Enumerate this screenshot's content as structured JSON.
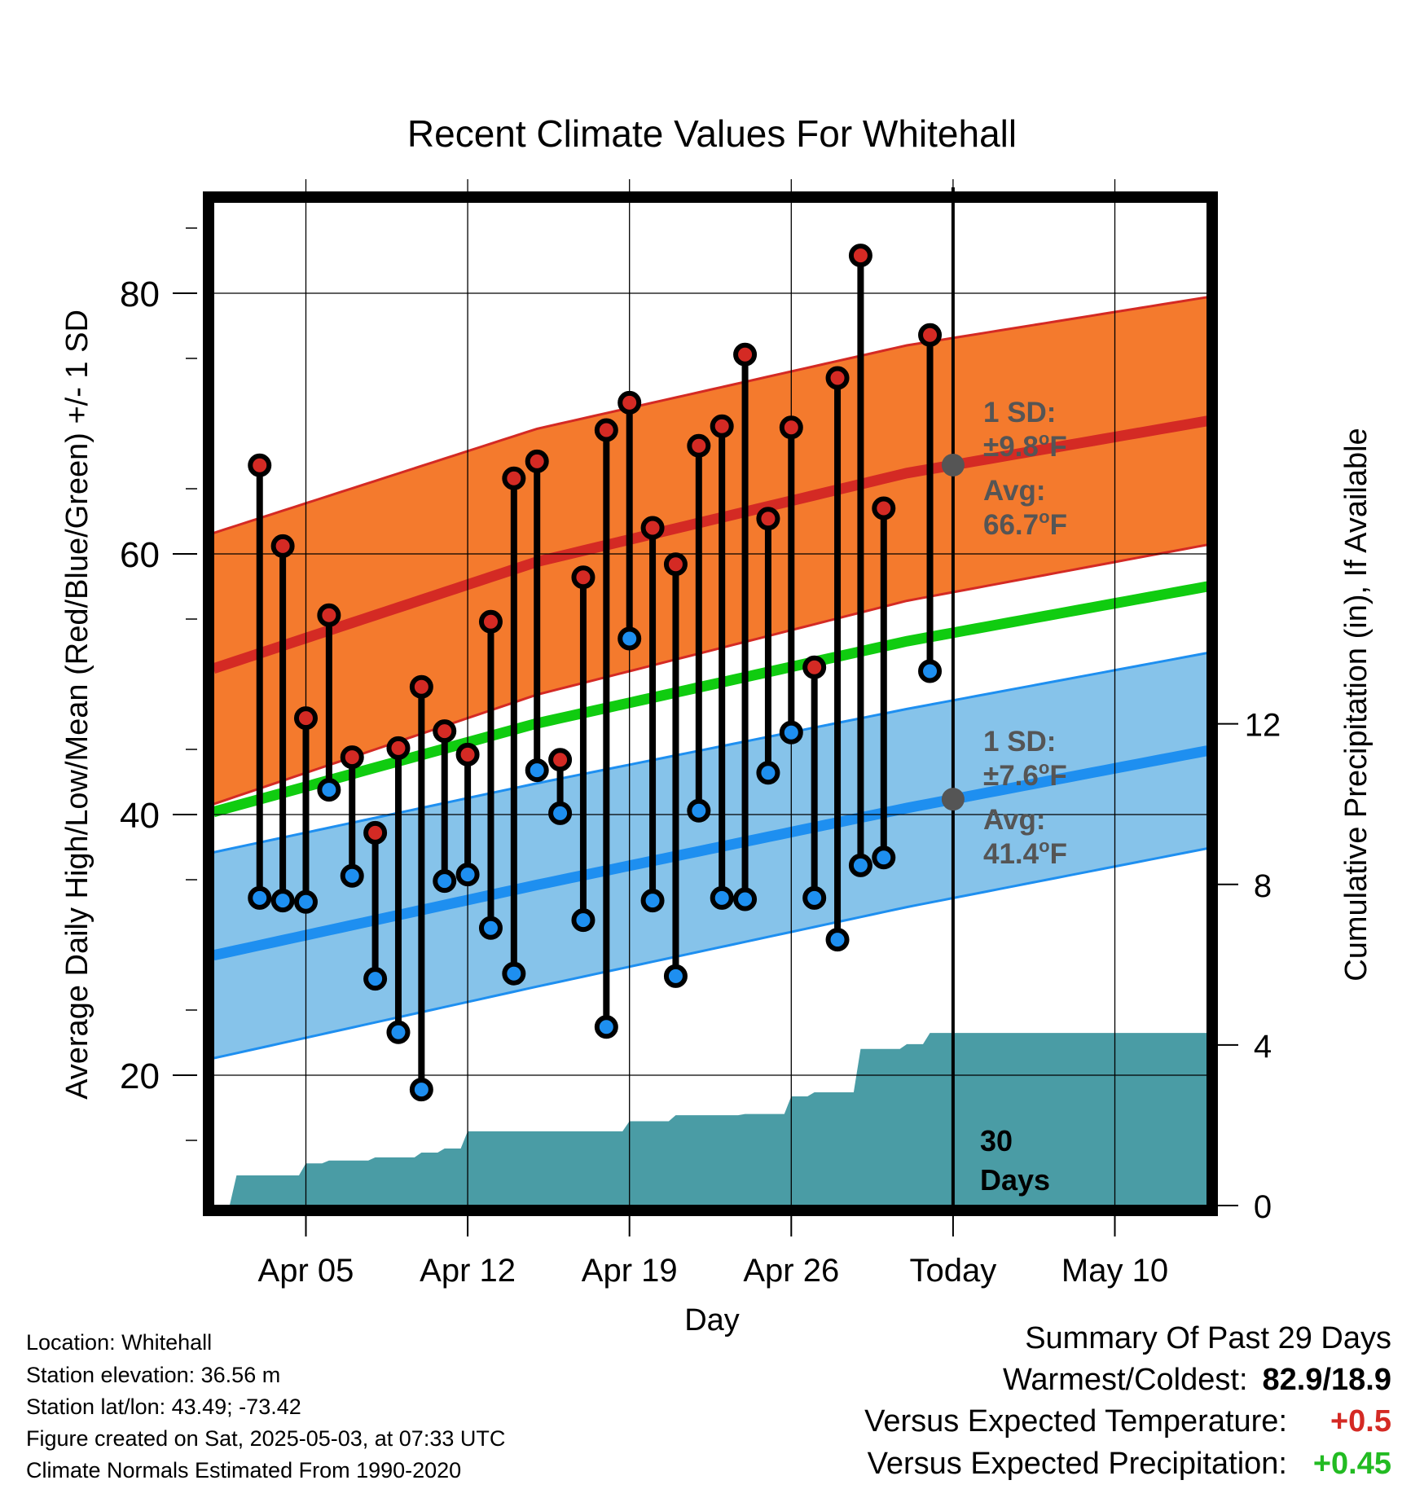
{
  "chart_data": {
    "type": "line",
    "title": "Recent Climate Values For Whitehall",
    "xlabel": "Day",
    "ylabel_left": "Average Daily High/Low/Mean (Red/Blue/Green) +/- 1 SD",
    "ylabel_right": "Cumulative Precipitation (in), If Available",
    "x_ticks": [
      "Apr 05",
      "Apr 12",
      "Apr 19",
      "Apr 26",
      "Today",
      "May 10"
    ],
    "y_left_ticks": [
      20,
      40,
      60,
      80
    ],
    "y_right_ticks": [
      0,
      4,
      8,
      12
    ],
    "y_left_range": [
      10,
      87
    ],
    "y_right_range": [
      0,
      25
    ],
    "x_range_days": [
      "2025-04-01",
      "2025-05-14"
    ],
    "today": "2025-05-03",
    "grid": true,
    "days": [
      "2025-04-03",
      "2025-04-04",
      "2025-04-05",
      "2025-04-06",
      "2025-04-07",
      "2025-04-08",
      "2025-04-09",
      "2025-04-10",
      "2025-04-11",
      "2025-04-12",
      "2025-04-13",
      "2025-04-14",
      "2025-04-15",
      "2025-04-16",
      "2025-04-17",
      "2025-04-18",
      "2025-04-19",
      "2025-04-20",
      "2025-04-21",
      "2025-04-22",
      "2025-04-23",
      "2025-04-24",
      "2025-04-25",
      "2025-04-26",
      "2025-04-27",
      "2025-04-28",
      "2025-04-29",
      "2025-04-30",
      "2025-05-02"
    ],
    "observed_high": [
      66.8,
      60.6,
      47.4,
      55.3,
      44.4,
      38.6,
      45.1,
      49.8,
      46.4,
      44.6,
      54.8,
      65.8,
      67.1,
      44.2,
      58.2,
      69.5,
      71.6,
      62.0,
      59.2,
      68.3,
      69.8,
      75.3,
      62.7,
      69.7,
      51.3,
      73.5,
      82.9,
      63.5,
      76.8
    ],
    "observed_low": [
      33.6,
      33.4,
      33.3,
      41.9,
      35.3,
      27.4,
      23.3,
      18.9,
      34.9,
      35.4,
      31.3,
      27.8,
      43.4,
      40.1,
      31.9,
      23.7,
      53.5,
      33.4,
      27.6,
      40.3,
      33.6,
      33.5,
      43.2,
      46.3,
      33.6,
      30.4,
      36.1,
      36.7,
      51.0
    ],
    "normal_high_series": {
      "name": "Normal High",
      "x": [
        "2025-04-01",
        "2025-04-15",
        "2025-05-01",
        "2025-05-14"
      ],
      "mean": [
        51.2,
        59.4,
        66.2,
        70.2
      ],
      "sd": [
        10.4,
        10.2,
        9.8,
        9.5
      ]
    },
    "normal_low_series": {
      "name": "Normal Low",
      "x": [
        "2025-04-01",
        "2025-04-15",
        "2025-05-01",
        "2025-05-14"
      ],
      "mean": [
        29.2,
        34.6,
        40.5,
        44.9
      ],
      "sd": [
        7.9,
        7.8,
        7.6,
        7.5
      ]
    },
    "normal_mean_series": {
      "name": "Normal Mean",
      "x": [
        "2025-04-01",
        "2025-04-15",
        "2025-05-01",
        "2025-05-14"
      ],
      "values": [
        40.2,
        47.0,
        53.3,
        57.5
      ]
    },
    "precip_cumulative": {
      "x": [
        "2025-04-01",
        "2025-04-02",
        "2025-04-03",
        "2025-04-04",
        "2025-04-05",
        "2025-04-06",
        "2025-04-07",
        "2025-04-08",
        "2025-04-09",
        "2025-04-10",
        "2025-04-11",
        "2025-04-12",
        "2025-04-13",
        "2025-04-18",
        "2025-04-19",
        "2025-04-20",
        "2025-04-21",
        "2025-04-24",
        "2025-04-25",
        "2025-04-26",
        "2025-04-27",
        "2025-04-28",
        "2025-04-29",
        "2025-04-30",
        "2025-05-01",
        "2025-05-02",
        "2025-05-14"
      ],
      "values": [
        0.0,
        0.75,
        0.75,
        0.75,
        1.05,
        1.12,
        1.12,
        1.2,
        1.2,
        1.32,
        1.42,
        1.85,
        1.85,
        1.85,
        2.1,
        2.1,
        2.25,
        2.28,
        2.28,
        2.72,
        2.82,
        2.82,
        3.9,
        3.9,
        4.02,
        4.3,
        4.3
      ]
    }
  },
  "annotations": {
    "high_sd_line1": "1 SD:",
    "high_sd_line2": "±9.8",
    "high_avg_line1": "Avg:",
    "high_avg_line2": "66.7",
    "low_sd_line1": "1 SD:",
    "low_sd_line2": "±7.6",
    "low_avg_line1": "Avg:",
    "low_avg_line2": "41.4",
    "deg_sup": "o",
    "unit_f": "F",
    "days_count": "30",
    "days_label": "Days"
  },
  "colors": {
    "high_band": "#f47a2d",
    "high_line": "#d42a24",
    "low_band": "#86c3ea",
    "low_line": "#1e8ff0",
    "mean_line": "#10cc10",
    "precip": "#4a9ca5",
    "high_dot": "#d42a24",
    "low_dot": "#1e8ff0",
    "annotation": "#555555",
    "positive_temp": "#d42a24",
    "positive_precip": "#22bb22"
  },
  "info": {
    "location": "Location: Whitehall",
    "elevation": "Station elevation: 36.56 m",
    "latlon": "Station lat/lon: 43.49; -73.42",
    "created": "Figure created on Sat, 2025-05-03, at 07:33 UTC",
    "normals": "Climate Normals Estimated From 1990-2020"
  },
  "summary": {
    "title": "Summary Of Past 29 Days",
    "warm_cold_label": "Warmest/Coldest:",
    "warm_cold_value": "82.9/18.9",
    "temp_label": "Versus Expected Temperature:",
    "temp_value": "+0.5",
    "precip_label": "Versus Expected Precipitation:",
    "precip_value": "+0.45"
  }
}
